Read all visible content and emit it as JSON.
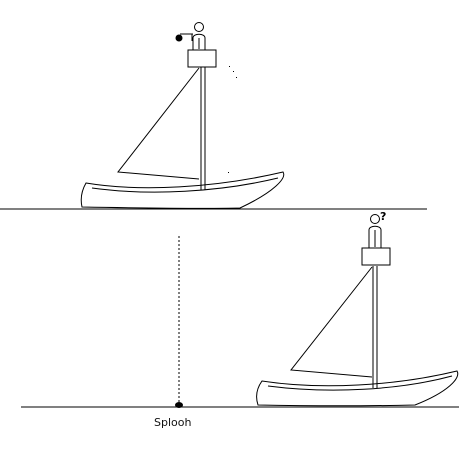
{
  "caption": "Splooh",
  "question_mark": "?",
  "colors": {
    "ink": "#000000",
    "background": "#ffffff"
  }
}
